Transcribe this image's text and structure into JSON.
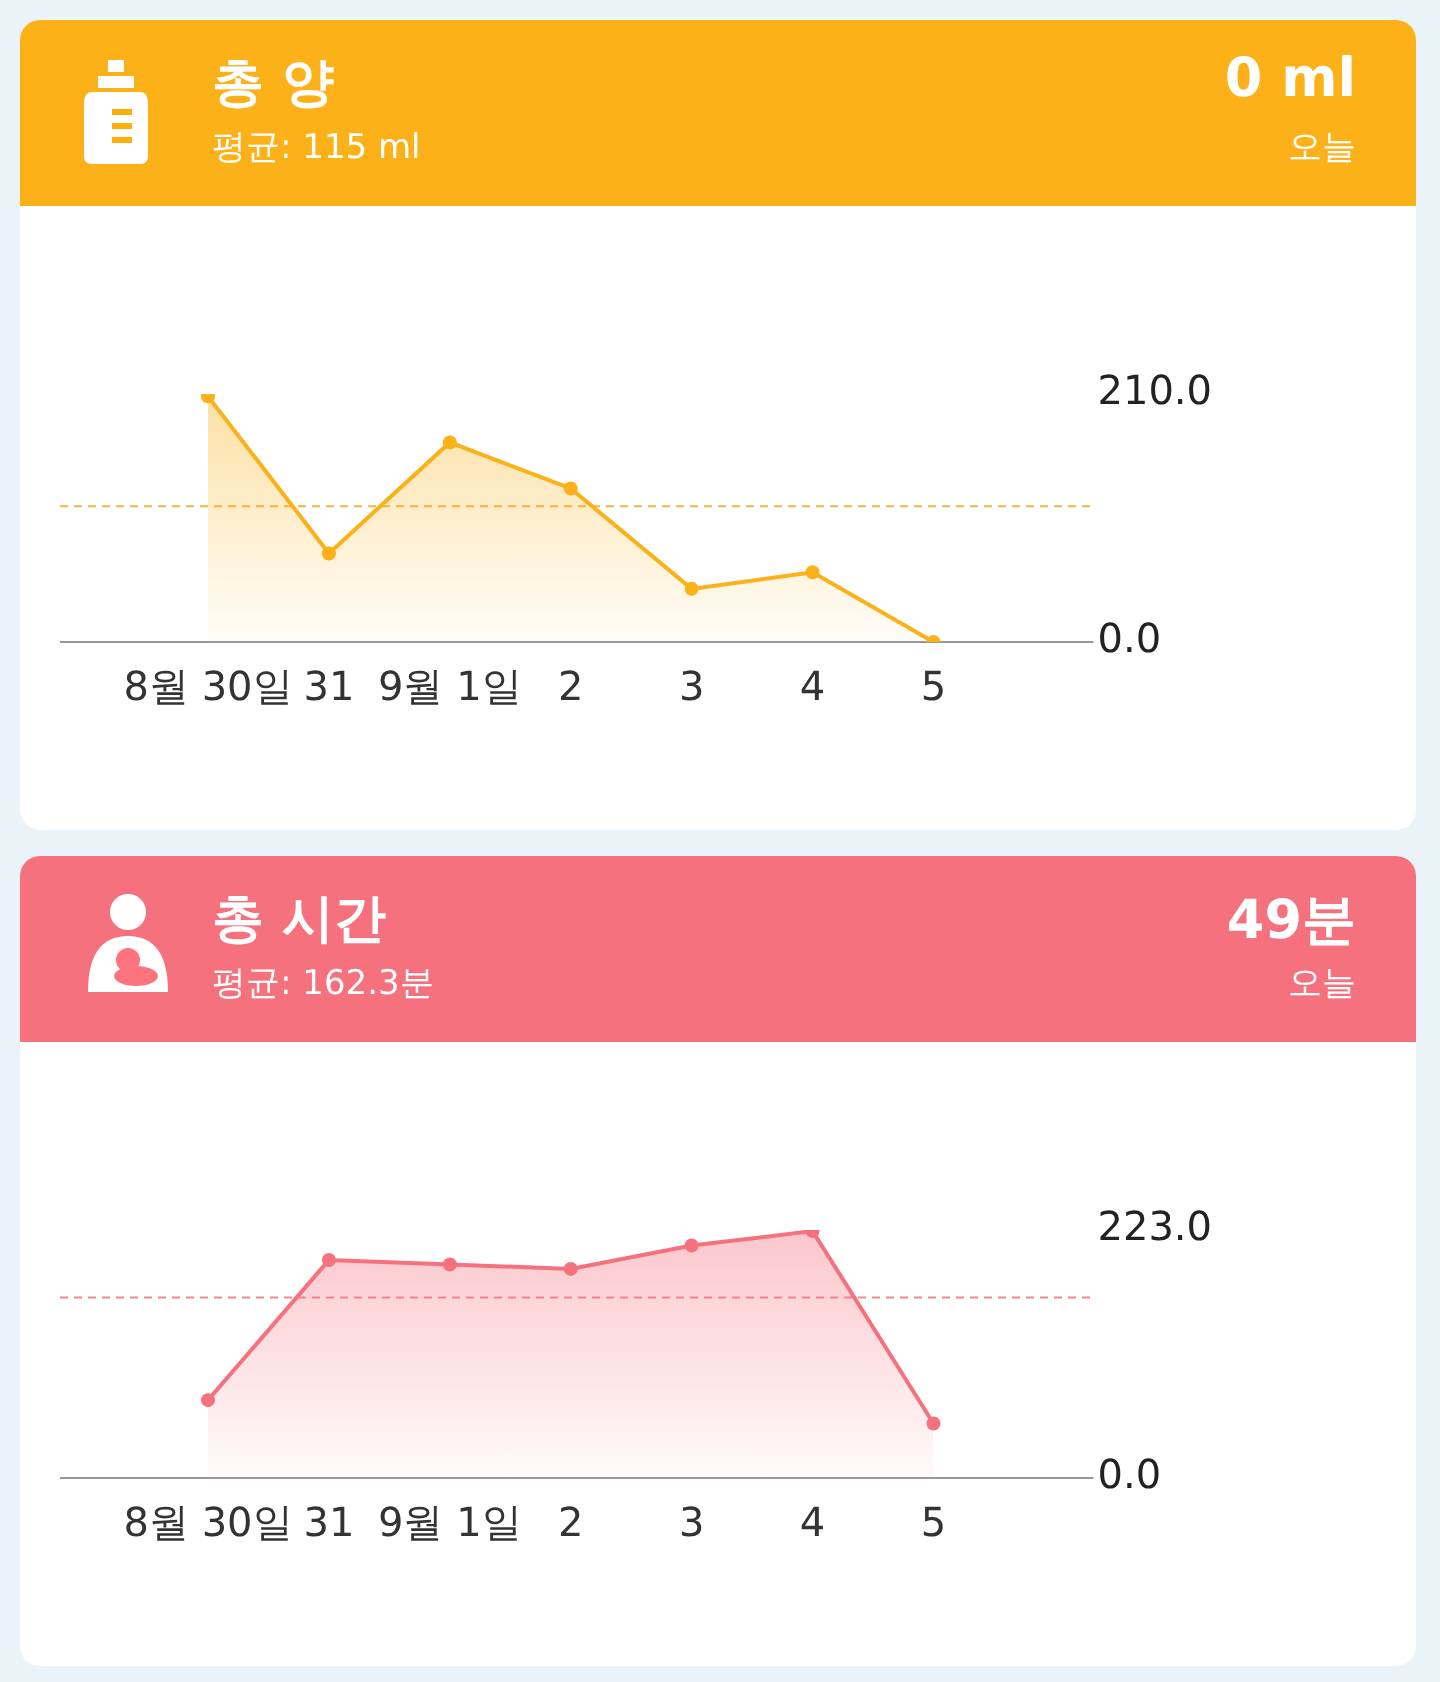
{
  "chart_data": [
    {
      "type": "area",
      "title": "총 양",
      "subtitle": "평균:  115 ml",
      "annotations": [
        "0 ml",
        "오늘"
      ],
      "categories": [
        "8월 30일",
        "31",
        "9월 1일",
        "2",
        "3",
        "4",
        "5"
      ],
      "series": [
        {
          "color": "#fbb117",
          "values": [
            208,
            75,
            169,
            130,
            45,
            59,
            0
          ]
        }
      ],
      "ylim": [
        0,
        210
      ],
      "yticks": [
        {
          "value": 0,
          "label": "0.0"
        },
        {
          "value": 210,
          "label": "210.0"
        }
      ],
      "ref_lines": [
        {
          "axis": "y",
          "value": 115,
          "color": "#f3b53c",
          "line_style": "dashed"
        }
      ],
      "marker": "circle",
      "grid": false,
      "legend": false
    },
    {
      "type": "area",
      "title": "총 시간",
      "subtitle": "평균:  162.3분",
      "annotations": [
        "49분",
        "오늘"
      ],
      "categories": [
        "8월 30일",
        "31",
        "9월 1일",
        "2",
        "3",
        "4",
        "5"
      ],
      "series": [
        {
          "color": "#f5717d",
          "values": [
            70,
            196,
            192,
            188,
            209,
            222,
            49
          ]
        }
      ],
      "ylim": [
        0,
        223
      ],
      "yticks": [
        {
          "value": 0,
          "label": "0.0"
        },
        {
          "value": 223,
          "label": "223.0"
        }
      ],
      "ref_lines": [
        {
          "axis": "y",
          "value": 162.3,
          "color": "#f08a92",
          "line_style": "dashed"
        }
      ],
      "marker": "circle",
      "grid": false,
      "legend": false
    }
  ]
}
